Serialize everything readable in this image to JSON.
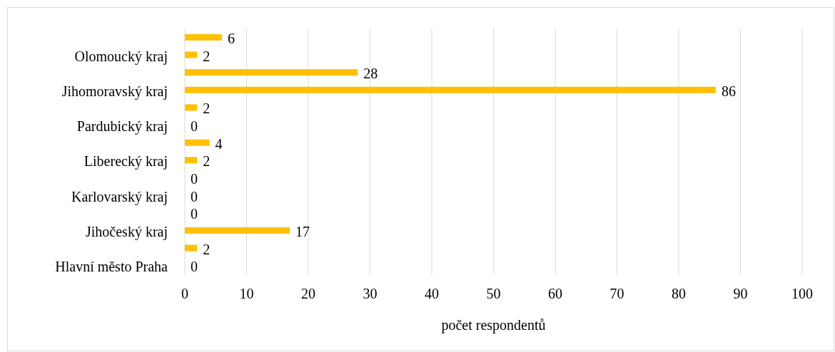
{
  "chart_data": {
    "type": "bar",
    "orientation": "horizontal",
    "xlabel": "počet respondentů",
    "categories": [
      null,
      "Olomoucký kraj",
      null,
      "Jihomoravský kraj",
      null,
      "Pardubický kraj",
      null,
      "Liberecký kraj",
      null,
      "Karlovarský kraj",
      null,
      "Jihočeský kraj",
      null,
      "Hlavní město Praha"
    ],
    "values": [
      6,
      2,
      28,
      86,
      2,
      0,
      4,
      2,
      0,
      0,
      0,
      17,
      2,
      0
    ],
    "color": "#ffc000",
    "xlim": [
      0,
      100
    ],
    "xticks": [
      0,
      10,
      20,
      30,
      40,
      50,
      60,
      70,
      80,
      90,
      100
    ],
    "grid": "x",
    "data_labels": true
  }
}
